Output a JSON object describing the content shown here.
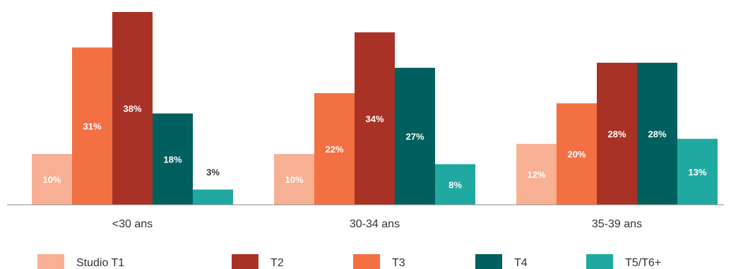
{
  "chart_data": {
    "type": "bar",
    "categories": [
      "<30 ans",
      "30-34 ans",
      "35-39 ans"
    ],
    "series": [
      {
        "name": "Studio T1",
        "color": "#f7b093",
        "values": [
          10,
          10,
          12
        ],
        "labels": [
          "10%",
          "10%",
          "12%"
        ]
      },
      {
        "name": "T3",
        "color": "#f37043",
        "values": [
          31,
          22,
          20
        ],
        "labels": [
          "31%",
          "22%",
          "20%"
        ]
      },
      {
        "name": "T2",
        "color": "#a93226",
        "values": [
          38,
          34,
          28
        ],
        "labels": [
          "38%",
          "34%",
          "28%"
        ]
      },
      {
        "name": "T4",
        "color": "#006060",
        "values": [
          18,
          27,
          28
        ],
        "labels": [
          "18%",
          "27%",
          "28%"
        ]
      },
      {
        "name": "T5/T6+",
        "color": "#20a9a0",
        "values": [
          3,
          8,
          13
        ],
        "labels": [
          "3%",
          "8%",
          "13%"
        ]
      }
    ],
    "legend_order": [
      "Studio T1",
      "T2",
      "T3",
      "T4",
      "T5/T6+"
    ],
    "ylim": [
      0,
      38
    ],
    "grid": false,
    "legend_position": "bottom",
    "title": "",
    "xlabel": "",
    "ylabel": ""
  }
}
